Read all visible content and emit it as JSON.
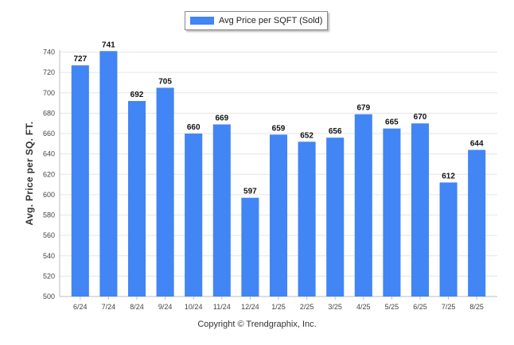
{
  "chart_data": {
    "type": "bar",
    "categories": [
      "6/24",
      "7/24",
      "8/24",
      "9/24",
      "10/24",
      "11/24",
      "12/24",
      "1/25",
      "2/25",
      "3/25",
      "4/25",
      "5/25",
      "6/25",
      "7/25",
      "8/25"
    ],
    "series": [
      {
        "name": "Avg Price per SQFT (Sold)",
        "values": [
          727,
          741,
          692,
          705,
          660,
          669,
          597,
          659,
          652,
          656,
          679,
          665,
          670,
          612,
          644
        ]
      }
    ],
    "ylabel": "Avg. Price per SQ. FT.",
    "xlabel": "",
    "ylim": [
      500,
      740
    ],
    "yticks": [
      500,
      520,
      540,
      560,
      580,
      600,
      620,
      640,
      660,
      680,
      700,
      720,
      740
    ],
    "grid": true,
    "legend_position": "top-center",
    "bar_color": "#4285f4"
  },
  "footer": {
    "copyright": "Copyright © Trendgraphix, Inc."
  }
}
